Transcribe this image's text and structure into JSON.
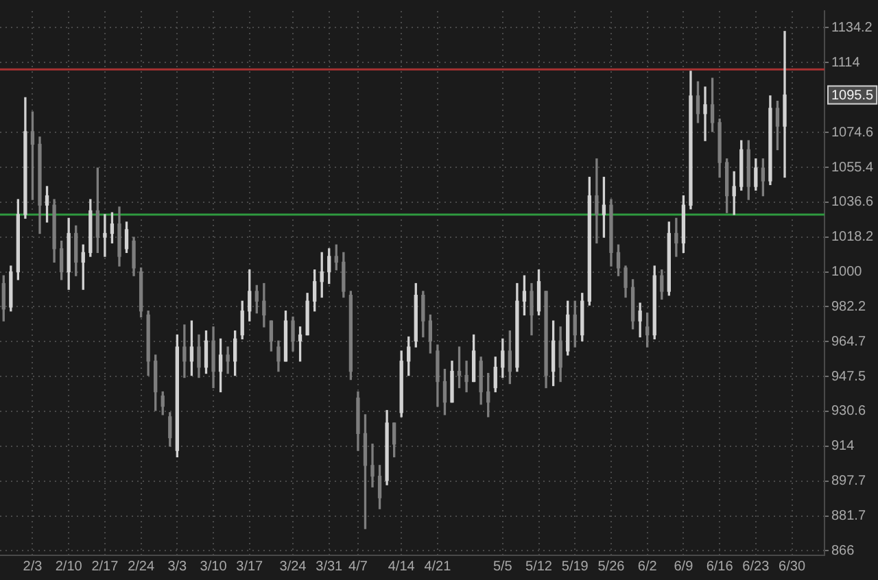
{
  "chart_data": {
    "type": "candlestick",
    "categories": [
      null,
      null,
      null,
      null,
      "2/3",
      null,
      null,
      null,
      null,
      "2/10",
      null,
      null,
      null,
      null,
      "2/17",
      null,
      null,
      null,
      null,
      "2/24",
      null,
      null,
      null,
      null,
      "3/3",
      null,
      null,
      null,
      null,
      "3/10",
      null,
      null,
      null,
      null,
      "3/17",
      null,
      null,
      null,
      null,
      null,
      "3/24",
      null,
      null,
      null,
      null,
      "3/31",
      null,
      null,
      null,
      "4/7",
      null,
      null,
      null,
      null,
      null,
      "4/14",
      null,
      null,
      null,
      null,
      "4/21",
      null,
      null,
      null,
      null,
      null,
      null,
      null,
      null,
      "5/5",
      null,
      null,
      null,
      null,
      "5/12",
      null,
      null,
      null,
      null,
      "5/19",
      null,
      null,
      null,
      null,
      "5/26",
      null,
      null,
      null,
      null,
      "6/2",
      null,
      null,
      null,
      null,
      "6/9",
      null,
      null,
      null,
      null,
      "6/16",
      null,
      null,
      null,
      null,
      "6/23",
      null,
      null,
      null,
      null,
      "6/30",
      null,
      null,
      null,
      null
    ],
    "ohlc": [
      [
        994,
        998,
        975,
        981
      ],
      [
        982,
        1003,
        980,
        1000
      ],
      [
        1000,
        1038,
        996,
        1030
      ],
      [
        1030,
        1094,
        1028,
        1075
      ],
      [
        1075,
        1086,
        1038,
        1068
      ],
      [
        1068,
        1072,
        1020,
        1035
      ],
      [
        1035,
        1045,
        1026,
        1040
      ],
      [
        1035,
        1038,
        1005,
        1012
      ],
      [
        1012,
        1016,
        996,
        1000
      ],
      [
        1000,
        1028,
        991,
        1020
      ],
      [
        1020,
        1024,
        998,
        1005
      ],
      [
        1005,
        1014,
        991,
        1010
      ],
      [
        1010,
        1038,
        1008,
        1032
      ],
      [
        1032,
        1055,
        1010,
        1018
      ],
      [
        1018,
        1030,
        1008,
        1020
      ],
      [
        1020,
        1031,
        1015,
        1025
      ],
      [
        1025,
        1034,
        1003,
        1008
      ],
      [
        1012,
        1026,
        1010,
        1022
      ],
      [
        1016,
        1018,
        998,
        1002
      ],
      [
        1000,
        1002,
        977,
        980
      ],
      [
        978,
        980,
        948,
        955
      ],
      [
        955,
        958,
        931,
        940
      ],
      [
        938,
        940,
        929,
        933
      ],
      [
        928,
        930,
        914,
        918
      ],
      [
        912,
        968,
        909,
        962
      ],
      [
        962,
        973,
        947,
        955
      ],
      [
        955,
        975,
        948,
        962
      ],
      [
        962,
        968,
        947,
        952
      ],
      [
        952,
        970,
        949,
        965
      ],
      [
        965,
        972,
        942,
        950
      ],
      [
        950,
        966,
        940,
        958
      ],
      [
        958,
        962,
        949,
        955
      ],
      [
        955,
        970,
        948,
        966
      ],
      [
        968,
        985,
        966,
        980
      ],
      [
        980,
        1001,
        975,
        990
      ],
      [
        990,
        993,
        979,
        985
      ],
      [
        985,
        994,
        972,
        978
      ],
      [
        975,
        975,
        960,
        965
      ],
      [
        962,
        965,
        950,
        955
      ],
      [
        955,
        980,
        955,
        975
      ],
      [
        975,
        977,
        960,
        965
      ],
      [
        965,
        972,
        955,
        968
      ],
      [
        968,
        989,
        968,
        985
      ],
      [
        985,
        1001,
        980,
        995
      ],
      [
        995,
        1010,
        987,
        1000
      ],
      [
        1000,
        1012,
        994,
        1008
      ],
      [
        1008,
        1014,
        1001,
        1005
      ],
      [
        1005,
        1010,
        987,
        990
      ],
      [
        988,
        990,
        946,
        950
      ],
      [
        937,
        940,
        912,
        920
      ],
      [
        920,
        929,
        876,
        905
      ],
      [
        905,
        915,
        895,
        900
      ],
      [
        900,
        905,
        885,
        890
      ],
      [
        898,
        931,
        896,
        925
      ],
      [
        925,
        925,
        909,
        915
      ],
      [
        930,
        960,
        928,
        955
      ],
      [
        955,
        967,
        948,
        962
      ],
      [
        965,
        994,
        962,
        988
      ],
      [
        988,
        990,
        967,
        975
      ],
      [
        975,
        978,
        959,
        965
      ],
      [
        960,
        963,
        933,
        945
      ],
      [
        945,
        951,
        929,
        935
      ],
      [
        935,
        955,
        935,
        950
      ],
      [
        950,
        962,
        942,
        948
      ],
      [
        948,
        955,
        940,
        945
      ],
      [
        945,
        968,
        945,
        960
      ],
      [
        955,
        957,
        934,
        940
      ],
      [
        940,
        949,
        928,
        935
      ],
      [
        942,
        957,
        940,
        952
      ],
      [
        952,
        966,
        947,
        960
      ],
      [
        960,
        970,
        944,
        950
      ],
      [
        952,
        994,
        950,
        985
      ],
      [
        985,
        998,
        978,
        990
      ],
      [
        990,
        994,
        968,
        978
      ],
      [
        980,
        1001,
        978,
        995
      ],
      [
        990,
        990,
        942,
        948
      ],
      [
        950,
        975,
        943,
        965
      ],
      [
        965,
        972,
        945,
        952
      ],
      [
        960,
        985,
        958,
        978
      ],
      [
        978,
        985,
        962,
        968
      ],
      [
        968,
        989,
        965,
        985
      ],
      [
        985,
        1050,
        983,
        1040
      ],
      [
        1040,
        1060,
        1015,
        1030
      ],
      [
        1030,
        1050,
        1018,
        1035
      ],
      [
        1035,
        1038,
        1003,
        1010
      ],
      [
        1010,
        1014,
        998,
        1002
      ],
      [
        1002,
        1003,
        987,
        992
      ],
      [
        992,
        996,
        971,
        975
      ],
      [
        975,
        984,
        967,
        980
      ],
      [
        972,
        979,
        962,
        968
      ],
      [
        968,
        1003,
        966,
        998
      ],
      [
        998,
        1001,
        986,
        990
      ],
      [
        990,
        1026,
        988,
        1020
      ],
      [
        1020,
        1028,
        1008,
        1015
      ],
      [
        1015,
        1040,
        1010,
        1035
      ],
      [
        1035,
        1109,
        1033,
        1095
      ],
      [
        1095,
        1103,
        1080,
        1085
      ],
      [
        1085,
        1100,
        1070,
        1090
      ],
      [
        1090,
        1105,
        1075,
        1080
      ],
      [
        1080,
        1082,
        1050,
        1058
      ],
      [
        1058,
        1060,
        1031,
        1040
      ],
      [
        1040,
        1053,
        1030,
        1045
      ],
      [
        1045,
        1070,
        1043,
        1065
      ],
      [
        1065,
        1070,
        1038,
        1045
      ],
      [
        1045,
        1060,
        1043,
        1055
      ],
      [
        1055,
        1060,
        1040,
        1048
      ],
      [
        1048,
        1095,
        1046,
        1088
      ],
      [
        1088,
        1092,
        1065,
        1078
      ],
      [
        1078,
        1132,
        1050,
        1095.5
      ],
      null,
      null,
      null,
      null,
      null
    ],
    "colors": [
      "#7e7e7e",
      "#d2d2d2",
      "#d2d2d2",
      "#d2d2d2",
      "#7e7e7e",
      "#7e7e7e",
      "#d2d2d2",
      "#7e7e7e",
      "#7e7e7e",
      "#d2d2d2",
      "#7e7e7e",
      "#d2d2d2",
      "#d2d2d2",
      "#7e7e7e",
      "#d2d2d2",
      "#d2d2d2",
      "#7e7e7e",
      "#d2d2d2",
      "#7e7e7e",
      "#7e7e7e",
      "#7e7e7e",
      "#7e7e7e",
      "#7e7e7e",
      "#7e7e7e",
      "#d2d2d2",
      "#7e7e7e",
      "#d2d2d2",
      "#7e7e7e",
      "#d2d2d2",
      "#7e7e7e",
      "#d2d2d2",
      "#7e7e7e",
      "#d2d2d2",
      "#d2d2d2",
      "#d2d2d2",
      "#7e7e7e",
      "#7e7e7e",
      "#7e7e7e",
      "#7e7e7e",
      "#d2d2d2",
      "#7e7e7e",
      "#d2d2d2",
      "#d2d2d2",
      "#d2d2d2",
      "#d2d2d2",
      "#d2d2d2",
      "#7e7e7e",
      "#7e7e7e",
      "#7e7e7e",
      "#7e7e7e",
      "#7e7e7e",
      "#7e7e7e",
      "#7e7e7e",
      "#d2d2d2",
      "#7e7e7e",
      "#d2d2d2",
      "#d2d2d2",
      "#d2d2d2",
      "#7e7e7e",
      "#7e7e7e",
      "#7e7e7e",
      "#7e7e7e",
      "#d2d2d2",
      "#7e7e7e",
      "#7e7e7e",
      "#d2d2d2",
      "#7e7e7e",
      "#7e7e7e",
      "#d2d2d2",
      "#d2d2d2",
      "#7e7e7e",
      "#d2d2d2",
      "#d2d2d2",
      "#7e7e7e",
      "#d2d2d2",
      "#7e7e7e",
      "#d2d2d2",
      "#7e7e7e",
      "#d2d2d2",
      "#7e7e7e",
      "#d2d2d2",
      "#d2d2d2",
      "#7e7e7e",
      "#d2d2d2",
      "#7e7e7e",
      "#7e7e7e",
      "#7e7e7e",
      "#7e7e7e",
      "#d2d2d2",
      "#7e7e7e",
      "#d2d2d2",
      "#7e7e7e",
      "#d2d2d2",
      "#7e7e7e",
      "#d2d2d2",
      "#d2d2d2",
      "#7e7e7e",
      "#d2d2d2",
      "#7e7e7e",
      "#7e7e7e",
      "#7e7e7e",
      "#d2d2d2",
      "#d2d2d2",
      "#7e7e7e",
      "#d2d2d2",
      "#7e7e7e",
      "#d2d2d2",
      "#7e7e7e",
      "#d2d2d2",
      null,
      null,
      null,
      null,
      null
    ],
    "log": true,
    "ylim": [
      864,
      1144
    ],
    "yticks": [
      866,
      881.7,
      897.7,
      914,
      930.6,
      947.5,
      964.7,
      982.2,
      1000,
      1018.2,
      1036.6,
      1055.4,
      1074.6,
      1114,
      1134.2
    ],
    "grid": true,
    "ref_lines": [
      {
        "axis": "y",
        "value": 1110,
        "color": "#a83232"
      },
      {
        "axis": "y",
        "value": 1030,
        "color": "#2f9a3f"
      }
    ],
    "annotations": [
      {
        "text": "1095.5",
        "y": 1095.5
      }
    ]
  }
}
